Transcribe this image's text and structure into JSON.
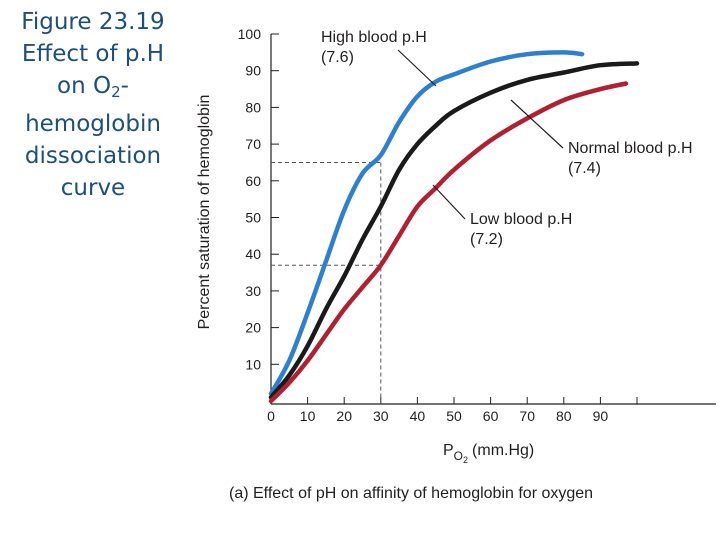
{
  "slide": {
    "title_line1": "Figure 23.19",
    "title_line2": "Effect of p.H",
    "title_line3_pre": "on O",
    "title_line3_sub": "2",
    "title_line3_post": "-",
    "title_line4": "hemoglobin",
    "title_line5": "dissociation",
    "title_line6": "curve"
  },
  "chart_data": {
    "type": "line",
    "caption": "(a) Effect of pH on affinity of hemoglobin for oxygen",
    "xlabel_main": "P",
    "xlabel_sub": "O",
    "xlabel_subsub": "2",
    "xlabel_unit": "(mm.Hg)",
    "ylabel": "Percent saturation of hemoglobin",
    "xlim": [
      0,
      100
    ],
    "ylim": [
      0,
      100
    ],
    "x_ticks": [
      0,
      10,
      20,
      30,
      40,
      50,
      60,
      70,
      80,
      90
    ],
    "y_ticks": [
      10,
      20,
      30,
      40,
      50,
      60,
      70,
      80,
      90,
      100
    ],
    "grid": false,
    "series": [
      {
        "name_line1": "High blood p.H",
        "name_line2": "(7.6)",
        "color": "#2d7fd0",
        "x": [
          0,
          5,
          10,
          15,
          20,
          25,
          30,
          35,
          40,
          45,
          50,
          60,
          70,
          80,
          85
        ],
        "y": [
          2,
          11,
          24,
          38,
          52,
          62,
          67,
          76,
          83,
          87,
          89,
          92.5,
          94.5,
          95,
          94.5
        ]
      },
      {
        "name_line1": "Normal blood p.H",
        "name_line2": "(7.4)",
        "color": "#1a1a1a",
        "x": [
          0,
          5,
          10,
          15,
          20,
          25,
          30,
          35,
          40,
          45,
          50,
          60,
          70,
          80,
          90,
          100
        ],
        "y": [
          1,
          7,
          15,
          25,
          34,
          44,
          53,
          63,
          70,
          75,
          79,
          84,
          87.5,
          89.5,
          91.5,
          92
        ]
      },
      {
        "name_line1": "Low blood p.H",
        "name_line2": "(7.2)",
        "color": "#b02030",
        "x": [
          0,
          5,
          10,
          15,
          20,
          25,
          30,
          35,
          40,
          45,
          50,
          60,
          70,
          80,
          90,
          97
        ],
        "y": [
          0,
          5,
          11,
          18,
          25,
          31,
          37,
          45,
          53,
          58,
          63,
          71,
          77,
          82,
          85,
          86.5
        ]
      }
    ],
    "reference_lines": [
      {
        "x": 30,
        "y": 65
      },
      {
        "x": 30,
        "y": 37
      }
    ]
  }
}
